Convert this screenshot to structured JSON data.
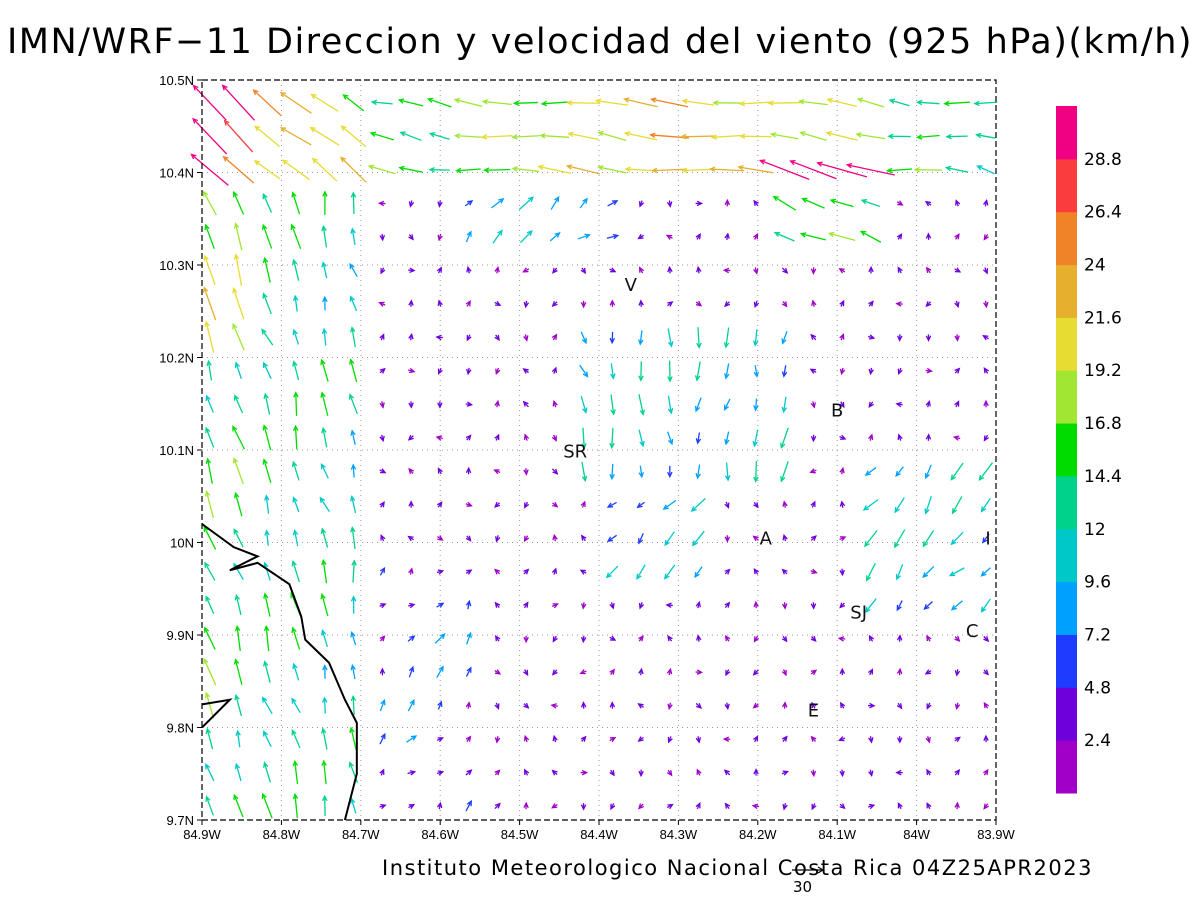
{
  "title": "IMN/WRF−11 Direccion y velocidad del viento (925 hPa)(km/h)",
  "footer": "Instituto Meteorologico Nacional Costa Rica 04Z25APR2023",
  "reference_vector": {
    "label": "30",
    "value": 30
  },
  "map": {
    "lon_range": [
      -84.9,
      -83.9
    ],
    "lat_range": [
      9.7,
      10.5
    ],
    "lon_ticks": [
      {
        "v": -84.9,
        "label": "84.9W"
      },
      {
        "v": -84.8,
        "label": "84.8W"
      },
      {
        "v": -84.7,
        "label": "84.7W"
      },
      {
        "v": -84.6,
        "label": "84.6W"
      },
      {
        "v": -84.5,
        "label": "84.5W"
      },
      {
        "v": -84.4,
        "label": "84.4W"
      },
      {
        "v": -84.3,
        "label": "84.3W"
      },
      {
        "v": -84.2,
        "label": "84.2W"
      },
      {
        "v": -84.1,
        "label": "84.1W"
      },
      {
        "v": -84.0,
        "label": "84W"
      },
      {
        "v": -83.9,
        "label": "83.9W"
      }
    ],
    "lat_ticks": [
      {
        "v": 9.7,
        "label": "9.7N"
      },
      {
        "v": 9.8,
        "label": "9.8N"
      },
      {
        "v": 9.9,
        "label": "9.9N"
      },
      {
        "v": 10.0,
        "label": "10N"
      },
      {
        "v": 10.1,
        "label": "10.1N"
      },
      {
        "v": 10.2,
        "label": "10.2N"
      },
      {
        "v": 10.3,
        "label": "10.3N"
      },
      {
        "v": 10.4,
        "label": "10.4N"
      },
      {
        "v": 10.5,
        "label": "10.5N"
      }
    ],
    "cities": [
      {
        "name": "V",
        "lon": -84.36,
        "lat": 10.272
      },
      {
        "name": "B",
        "lon": -84.1,
        "lat": 10.136
      },
      {
        "name": "SR",
        "lon": -84.43,
        "lat": 10.092
      },
      {
        "name": "A",
        "lon": -84.19,
        "lat": 9.998
      },
      {
        "name": "I",
        "lon": -83.91,
        "lat": 9.998
      },
      {
        "name": "SJ",
        "lon": -84.073,
        "lat": 9.918
      },
      {
        "name": "C",
        "lon": -83.93,
        "lat": 9.898
      },
      {
        "name": "E",
        "lon": -84.13,
        "lat": 9.812
      }
    ],
    "coastline": [
      [
        -84.9,
        10.02
      ],
      [
        -84.86,
        9.995
      ],
      [
        -84.83,
        9.985
      ],
      [
        -84.865,
        9.97
      ],
      [
        -84.83,
        9.978
      ],
      [
        -84.79,
        9.955
      ],
      [
        -84.775,
        9.92
      ],
      [
        -84.77,
        9.895
      ],
      [
        -84.74,
        9.87
      ],
      [
        -84.72,
        9.83
      ],
      [
        -84.705,
        9.805
      ],
      [
        -84.705,
        9.75
      ],
      [
        -84.72,
        9.7
      ]
    ],
    "coastline2": [
      [
        -84.9,
        9.8
      ],
      [
        -84.865,
        9.83
      ],
      [
        -84.9,
        9.825
      ]
    ]
  },
  "colorbar": {
    "colors": [
      "#a000c8",
      "#6e00dc",
      "#1e3cff",
      "#00a0ff",
      "#00c8c8",
      "#00d28c",
      "#00dc00",
      "#a0e632",
      "#e6dc32",
      "#e6af2d",
      "#f08228",
      "#fa3c3c",
      "#f00082"
    ],
    "labels": [
      "2.4",
      "4.8",
      "7.2",
      "9.6",
      "12",
      "14.4",
      "16.8",
      "19.2",
      "21.6",
      "24",
      "26.4",
      "28.8"
    ]
  }
}
